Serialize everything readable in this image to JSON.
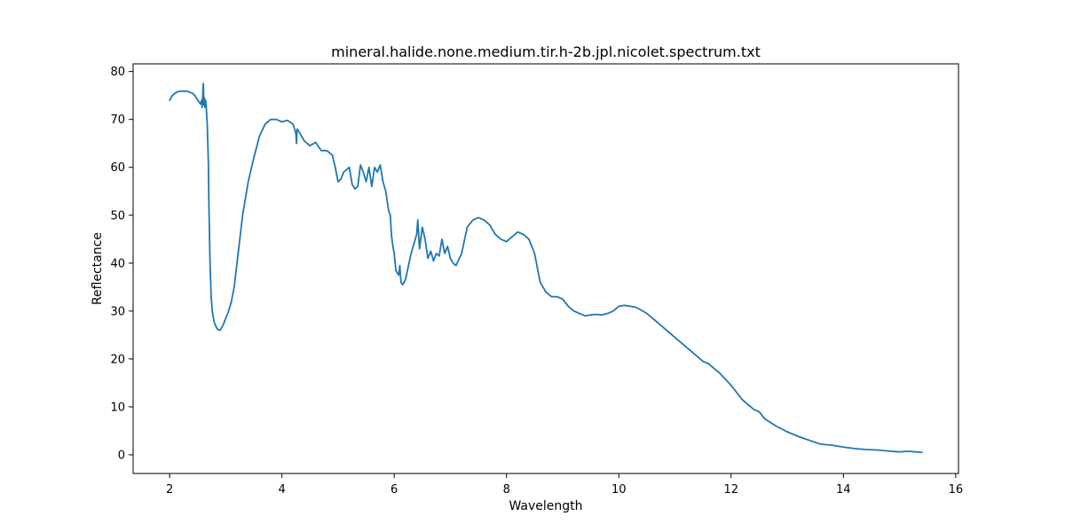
{
  "chart_data": {
    "type": "line",
    "title": "mineral.halide.none.medium.tir.h-2b.jpl.nicolet.spectrum.txt",
    "xlabel": "Wavelength",
    "ylabel": "Reflectance",
    "xlim": [
      1.35,
      16.05
    ],
    "ylim": [
      -3.9,
      81.6
    ],
    "xticks": [
      2,
      4,
      6,
      8,
      10,
      12,
      14,
      16
    ],
    "yticks": [
      0,
      10,
      20,
      30,
      40,
      50,
      60,
      70,
      80
    ],
    "grid": false,
    "color": "#1f77b4",
    "series": [
      {
        "x": [
          2.0,
          2.05,
          2.1,
          2.15,
          2.2,
          2.3,
          2.4,
          2.45,
          2.5,
          2.55,
          2.57,
          2.58,
          2.59,
          2.6,
          2.61,
          2.62,
          2.63,
          2.64,
          2.65,
          2.67,
          2.69,
          2.7,
          2.72,
          2.74,
          2.76,
          2.78,
          2.8,
          2.85,
          2.9,
          2.95,
          3.0,
          3.05,
          3.1,
          3.15,
          3.2,
          3.3,
          3.4,
          3.5,
          3.6,
          3.7,
          3.8,
          3.9,
          4.0,
          4.1,
          4.2,
          4.25,
          4.26,
          4.27,
          4.3,
          4.35,
          4.4,
          4.5,
          4.6,
          4.7,
          4.8,
          4.9,
          4.95,
          5.0,
          5.05,
          5.1,
          5.15,
          5.2,
          5.25,
          5.3,
          5.35,
          5.4,
          5.45,
          5.5,
          5.55,
          5.6,
          5.65,
          5.7,
          5.75,
          5.8,
          5.85,
          5.9,
          5.93,
          5.95,
          5.97,
          6.0,
          6.03,
          6.05,
          6.08,
          6.1,
          6.12,
          6.15,
          6.2,
          6.3,
          6.35,
          6.4,
          6.42,
          6.45,
          6.5,
          6.55,
          6.6,
          6.65,
          6.7,
          6.75,
          6.8,
          6.85,
          6.9,
          6.95,
          7.0,
          7.05,
          7.1,
          7.2,
          7.3,
          7.4,
          7.5,
          7.6,
          7.7,
          7.8,
          7.9,
          8.0,
          8.1,
          8.2,
          8.3,
          8.4,
          8.5,
          8.6,
          8.65,
          8.7,
          8.8,
          8.9,
          9.0,
          9.1,
          9.2,
          9.3,
          9.4,
          9.5,
          9.6,
          9.7,
          9.8,
          9.9,
          10.0,
          10.1,
          10.2,
          10.3,
          10.4,
          10.5,
          10.6,
          10.7,
          10.8,
          10.9,
          11.0,
          11.2,
          11.4,
          11.5,
          11.6,
          11.8,
          12.0,
          12.2,
          12.4,
          12.5,
          12.6,
          12.8,
          13.0,
          13.2,
          13.4,
          13.6,
          13.8,
          14.0,
          14.2,
          14.4,
          14.6,
          14.8,
          15.0,
          15.1,
          15.2,
          15.3,
          15.4
        ],
        "y": [
          74.0,
          75.0,
          75.5,
          75.8,
          75.9,
          75.9,
          75.5,
          75.0,
          74.0,
          73.2,
          74.0,
          72.5,
          75.0,
          77.5,
          73.0,
          74.5,
          72.5,
          74.0,
          73.0,
          69.0,
          61.0,
          52.0,
          40.0,
          33.0,
          30.0,
          28.5,
          27.5,
          26.2,
          26.0,
          27.0,
          28.5,
          30.0,
          32.0,
          35.0,
          40.0,
          50.0,
          57.0,
          62.0,
          66.5,
          69.0,
          70.0,
          70.0,
          69.5,
          69.8,
          69.0,
          67.0,
          65.0,
          68.0,
          67.5,
          66.5,
          65.5,
          64.5,
          65.2,
          63.5,
          63.5,
          62.5,
          60.0,
          57.0,
          57.5,
          59.0,
          59.5,
          60.0,
          56.5,
          55.5,
          56.0,
          60.5,
          59.0,
          57.0,
          60.0,
          56.0,
          60.0,
          59.0,
          60.5,
          57.0,
          55.0,
          51.0,
          50.0,
          46.0,
          44.0,
          42.0,
          38.5,
          38.0,
          37.5,
          39.5,
          36.0,
          35.5,
          36.5,
          42.0,
          44.0,
          46.0,
          49.0,
          43.0,
          47.5,
          45.0,
          41.0,
          42.5,
          40.5,
          42.0,
          41.5,
          45.0,
          42.0,
          43.5,
          41.0,
          40.0,
          39.5,
          42.0,
          47.5,
          49.0,
          49.5,
          49.0,
          48.0,
          46.0,
          45.0,
          44.5,
          45.5,
          46.5,
          46.0,
          45.0,
          42.0,
          36.0,
          35.0,
          34.0,
          33.0,
          33.0,
          32.5,
          31.0,
          30.0,
          29.5,
          29.0,
          29.2,
          29.3,
          29.2,
          29.5,
          30.0,
          31.0,
          31.2,
          31.0,
          30.8,
          30.2,
          29.5,
          28.5,
          27.5,
          26.5,
          25.5,
          24.5,
          22.5,
          20.5,
          19.5,
          19.0,
          17.0,
          14.5,
          11.5,
          9.5,
          9.0,
          7.5,
          6.0,
          4.8,
          3.8,
          3.0,
          2.2,
          2.0,
          1.6,
          1.3,
          1.1,
          1.0,
          0.8,
          0.6,
          0.7,
          0.7,
          0.6,
          0.5
        ]
      }
    ]
  }
}
